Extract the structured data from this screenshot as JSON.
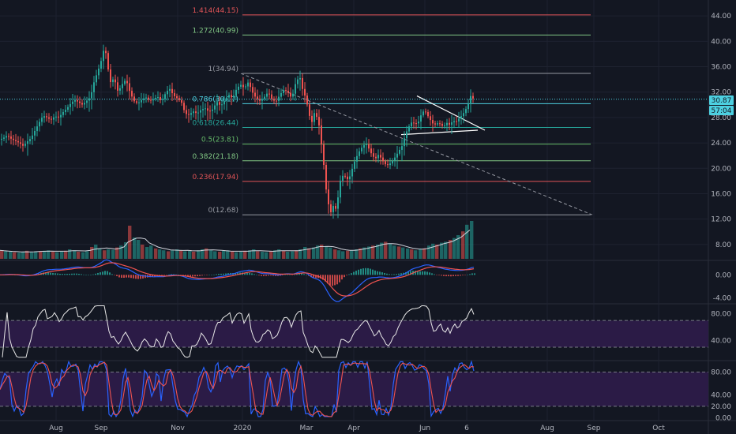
{
  "chart_data": [
    {
      "panel": "price",
      "type": "line",
      "xaxis_labels": [
        "Aug",
        "Sep",
        "Nov",
        "2020",
        "Mar",
        "Apr",
        "Jun",
        "6",
        "Aug",
        "Sep",
        "Oct"
      ],
      "yaxis_ticks": [
        "44.00",
        "40.00",
        "36.00",
        "32.00",
        "28.00",
        "24.00",
        "20.00",
        "16.00",
        "12.00",
        "8.00"
      ],
      "ylim": [
        5.5,
        46.5
      ],
      "price_label": "30.87",
      "countdown_label": "57:04",
      "fib_levels": [
        {
          "label": "1.414(44.15)",
          "value": 44.15,
          "color": "#e15457"
        },
        {
          "label": "1.272(40.99)",
          "value": 40.99,
          "color": "#81c784"
        },
        {
          "label": "1(34.94)",
          "value": 34.94,
          "color": "#9598a1"
        },
        {
          "label": "0.786(30.17)",
          "value": 30.17,
          "color": "#4dd0e1"
        },
        {
          "label": "0.618(26.44)",
          "value": 26.44,
          "color": "#26a69a"
        },
        {
          "label": "0.5(23.81)",
          "value": 23.81,
          "color": "#66bb6a"
        },
        {
          "label": "0.382(21.18)",
          "value": 21.18,
          "color": "#81c784"
        },
        {
          "label": "0.236(17.94)",
          "value": 17.94,
          "color": "#e15457"
        },
        {
          "label": "0(12.68)",
          "value": 12.68,
          "color": "#9598a1"
        }
      ],
      "price_points": [
        [
          0,
          24.5
        ],
        [
          5,
          24.8
        ],
        [
          10,
          25.2
        ],
        [
          15,
          24.6
        ],
        [
          20,
          24.3
        ],
        [
          25,
          24.0
        ],
        [
          30,
          23.5
        ],
        [
          35,
          24.2
        ],
        [
          40,
          24.8
        ],
        [
          45,
          26.0
        ],
        [
          50,
          27.2
        ],
        [
          55,
          28.3
        ],
        [
          60,
          28.0
        ],
        [
          65,
          27.6
        ],
        [
          70,
          28.2
        ],
        [
          75,
          28.0
        ],
        [
          80,
          28.8
        ],
        [
          85,
          29.4
        ],
        [
          90,
          30.2
        ],
        [
          95,
          30.8
        ],
        [
          100,
          30.4
        ],
        [
          105,
          30.0
        ],
        [
          110,
          30.6
        ],
        [
          115,
          31.2
        ],
        [
          120,
          33.8
        ],
        [
          125,
          35.5
        ],
        [
          130,
          37.5
        ],
        [
          133,
          39.5
        ],
        [
          136,
          36.8
        ],
        [
          140,
          33.5
        ],
        [
          145,
          34.2
        ],
        [
          150,
          32.0
        ],
        [
          155,
          33.2
        ],
        [
          160,
          34.0
        ],
        [
          165,
          32.0
        ],
        [
          170,
          30.6
        ],
        [
          175,
          30.2
        ],
        [
          180,
          30.8
        ],
        [
          185,
          31.2
        ],
        [
          190,
          30.6
        ],
        [
          195,
          30.9
        ],
        [
          200,
          31.3
        ],
        [
          205,
          30.5
        ],
        [
          210,
          31.8
        ],
        [
          215,
          32.6
        ],
        [
          220,
          31.5
        ],
        [
          225,
          31.0
        ],
        [
          230,
          30.5
        ],
        [
          235,
          28.6
        ],
        [
          240,
          28.4
        ],
        [
          245,
          29.0
        ],
        [
          250,
          28.6
        ],
        [
          255,
          29.2
        ],
        [
          260,
          29.5
        ],
        [
          265,
          28.9
        ],
        [
          270,
          29.3
        ],
        [
          275,
          30.5
        ],
        [
          280,
          29.8
        ],
        [
          285,
          30.7
        ],
        [
          290,
          31.6
        ],
        [
          295,
          31.0
        ],
        [
          300,
          32.5
        ],
        [
          305,
          33.2
        ],
        [
          310,
          32.6
        ],
        [
          315,
          33.6
        ],
        [
          320,
          32.0
        ],
        [
          325,
          31.0
        ],
        [
          330,
          30.6
        ],
        [
          335,
          31.2
        ],
        [
          340,
          32.0
        ],
        [
          345,
          30.8
        ],
        [
          350,
          30.5
        ],
        [
          355,
          31.6
        ],
        [
          360,
          32.4
        ],
        [
          365,
          32.0
        ],
        [
          370,
          31.0
        ],
        [
          375,
          33.5
        ],
        [
          380,
          34.5
        ],
        [
          384,
          32.2
        ],
        [
          388,
          31.0
        ],
        [
          392,
          28.5
        ],
        [
          395,
          27.0
        ],
        [
          398,
          28.8
        ],
        [
          402,
          28.0
        ],
        [
          405,
          26.5
        ],
        [
          408,
          23.2
        ],
        [
          411,
          20.0
        ],
        [
          414,
          16.0
        ],
        [
          417,
          14.0
        ],
        [
          420,
          12.9
        ],
        [
          423,
          14.3
        ],
        [
          426,
          13.5
        ],
        [
          429,
          15.8
        ],
        [
          432,
          18.5
        ],
        [
          436,
          19.0
        ],
        [
          440,
          18.2
        ],
        [
          444,
          18.8
        ],
        [
          448,
          20.6
        ],
        [
          452,
          21.8
        ],
        [
          456,
          22.8
        ],
        [
          460,
          23.5
        ],
        [
          464,
          23.9
        ],
        [
          468,
          23.0
        ],
        [
          472,
          22.0
        ],
        [
          476,
          21.5
        ],
        [
          480,
          22.2
        ],
        [
          485,
          21.2
        ],
        [
          490,
          20.4
        ],
        [
          495,
          20.8
        ],
        [
          500,
          21.6
        ],
        [
          505,
          22.6
        ],
        [
          510,
          23.6
        ],
        [
          514,
          25.4
        ],
        [
          518,
          26.5
        ],
        [
          522,
          27.3
        ],
        [
          526,
          27.0
        ],
        [
          530,
          27.2
        ],
        [
          534,
          28.5
        ],
        [
          538,
          29.2
        ],
        [
          542,
          28.3
        ],
        [
          546,
          27.5
        ],
        [
          550,
          26.8
        ],
        [
          554,
          27.1
        ],
        [
          558,
          27.0
        ],
        [
          562,
          26.5
        ],
        [
          566,
          27.2
        ],
        [
          570,
          26.8
        ],
        [
          574,
          27.5
        ],
        [
          578,
          27.3
        ],
        [
          582,
          27.9
        ],
        [
          586,
          28.4
        ],
        [
          590,
          29.2
        ],
        [
          594,
          30.3
        ],
        [
          597,
          31.6
        ],
        [
          600,
          30.87
        ]
      ],
      "trendline": [
        [
          305,
          34.94
        ],
        [
          750,
          12.68
        ]
      ],
      "triangle_top": [
        [
          528,
          31.4
        ],
        [
          614,
          26.0
        ]
      ],
      "triangle_bottom": [
        [
          508,
          25.3
        ],
        [
          605,
          26.0
        ]
      ]
    },
    {
      "panel": "volume",
      "type": "bar",
      "ylim": [
        0,
        100
      ],
      "values": [
        18,
        16,
        15,
        14,
        13,
        15,
        17,
        14,
        15,
        16,
        17,
        18,
        15,
        14,
        16,
        17,
        20,
        18,
        15,
        14,
        16,
        25,
        30,
        22,
        18,
        20,
        19,
        24,
        28,
        35,
        70,
        45,
        40,
        30,
        25,
        28,
        22,
        20,
        18,
        16,
        18,
        20,
        18,
        16,
        17,
        15,
        18,
        20,
        22,
        19,
        16,
        15,
        17,
        18,
        16,
        14,
        15,
        17,
        18,
        20,
        16,
        15,
        14,
        16,
        18,
        20,
        17,
        15,
        16,
        18,
        20,
        25,
        22,
        24,
        28,
        30,
        26,
        24,
        20,
        18,
        16,
        17,
        18,
        20,
        22,
        24,
        26,
        28,
        30,
        34,
        36,
        32,
        28,
        26,
        24,
        22,
        20,
        18,
        20,
        22,
        28,
        32,
        30,
        34,
        36,
        40,
        44,
        50,
        58,
        72,
        80
      ]
    },
    {
      "panel": "macd",
      "type": "line",
      "yaxis_ticks": [
        "0.00",
        "-4.00"
      ],
      "ylim": [
        -5.0,
        2.5
      ]
    },
    {
      "panel": "rsi",
      "type": "line",
      "yaxis_ticks": [
        "80.00",
        "40.00"
      ],
      "ylim": [
        10,
        95
      ],
      "band": [
        30,
        70
      ]
    },
    {
      "panel": "stochastic",
      "type": "line",
      "yaxis_ticks": [
        "80.00",
        "40.00",
        "20.00",
        "0.00"
      ],
      "ylim": [
        -5,
        100
      ],
      "band": [
        20,
        80
      ]
    }
  ],
  "colors": {
    "background": "#131722",
    "price_line": "#4dd0e1",
    "price_label_bg": "#4dd0e1",
    "countdown_bg": "#4dd0e1",
    "candle_up": "#26a69a",
    "candle_down": "#ef5350",
    "band_fill": "#2b1b46"
  }
}
